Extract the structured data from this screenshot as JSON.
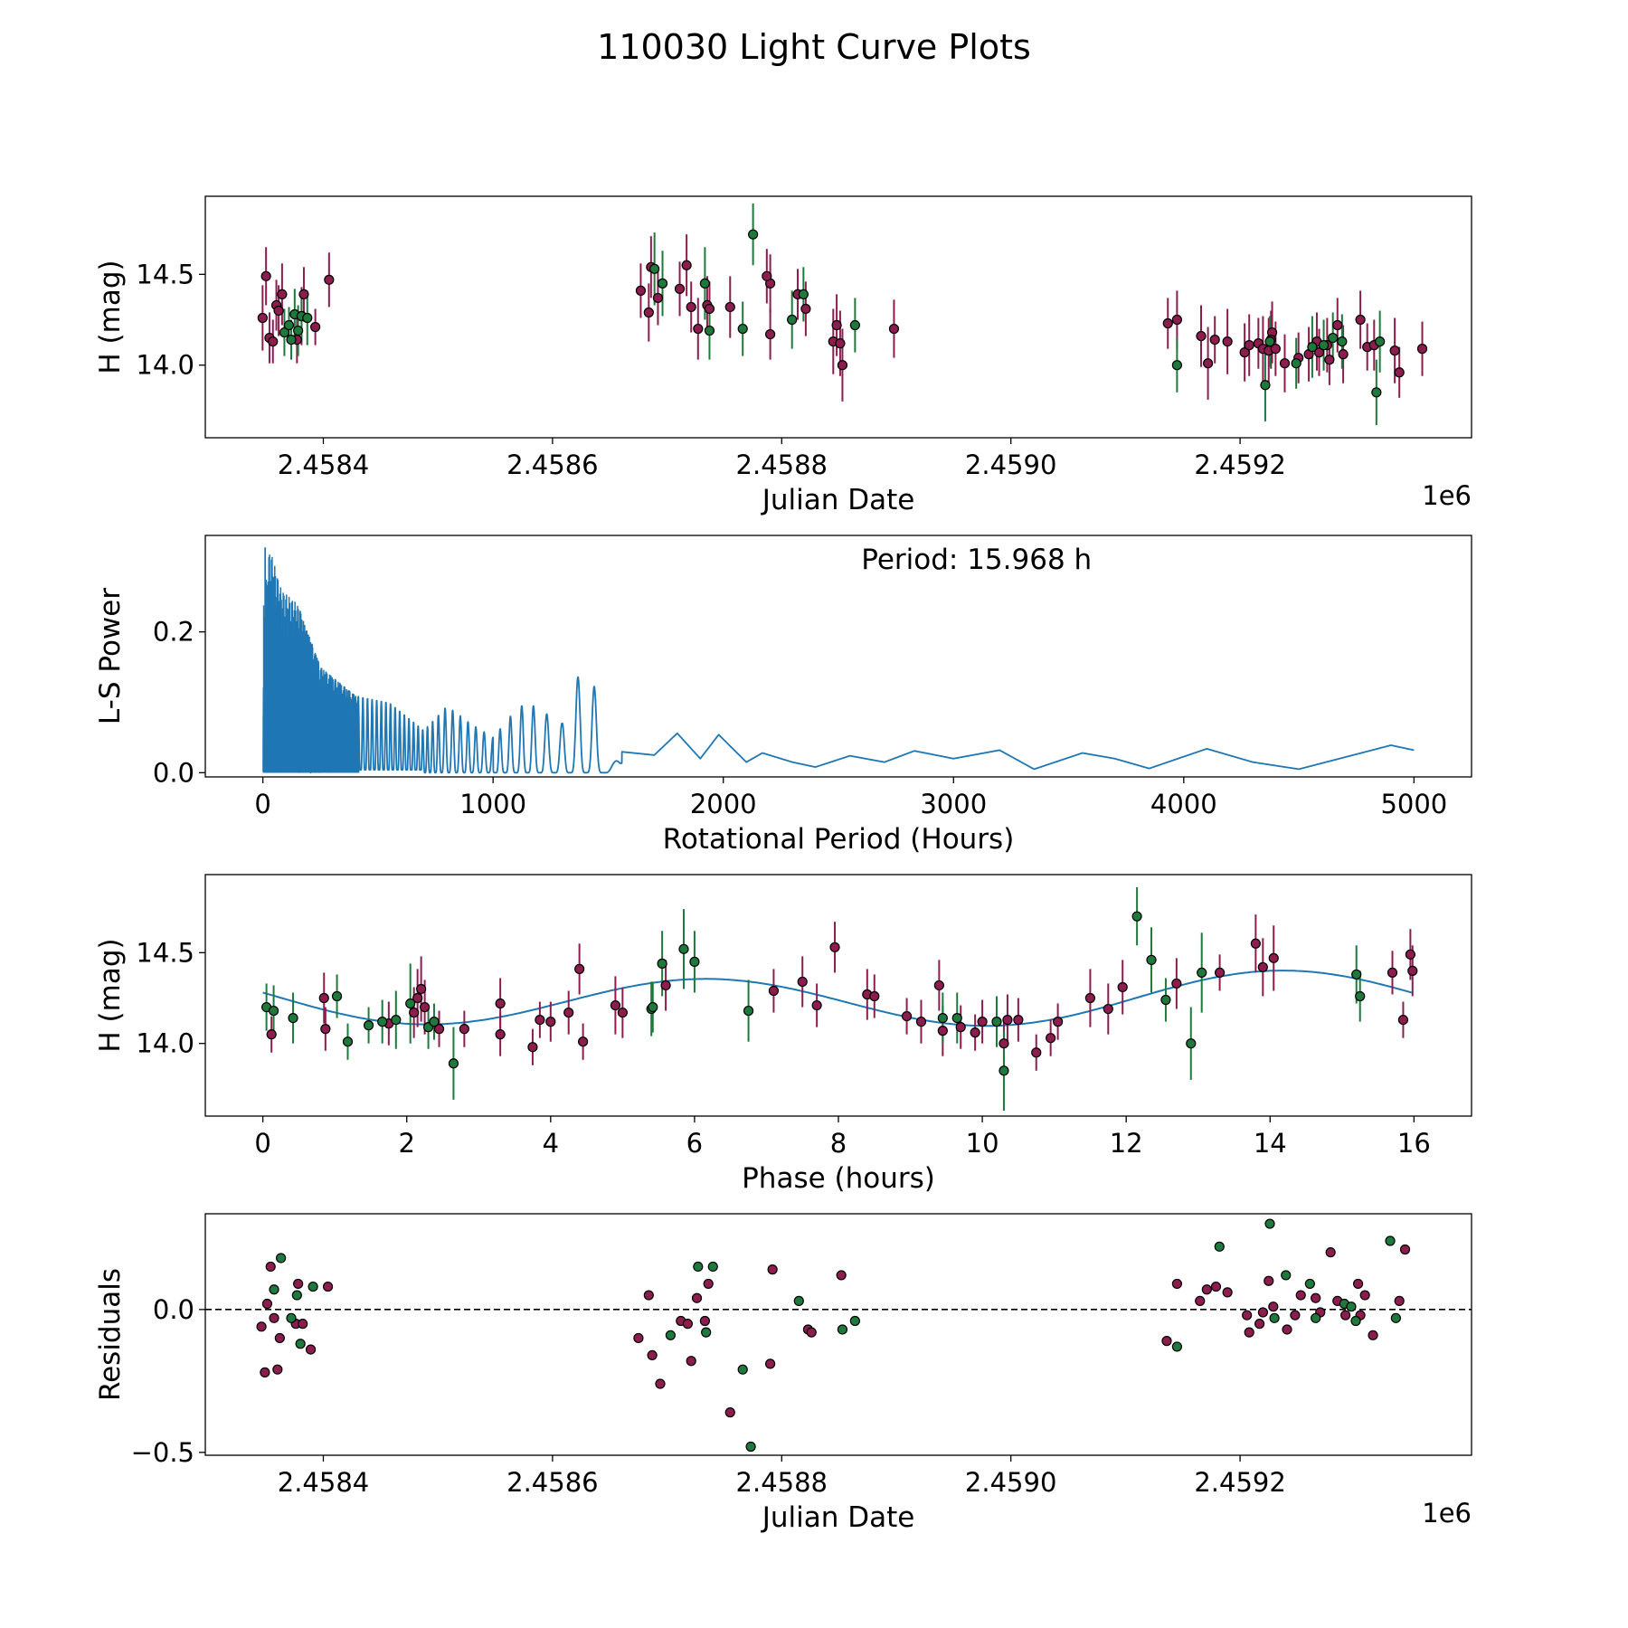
{
  "figure": {
    "title": "110030 Light Curve Plots"
  },
  "colors": {
    "maroon": "#8c1d4e",
    "green": "#1e7a3c",
    "line": "#1f77b4",
    "black": "#000000"
  },
  "chart_data": [
    {
      "id": "lightcurve",
      "type": "scatter",
      "title": "",
      "xlabel": "Julian Date",
      "ylabel": "H (mag)",
      "x_offset_label": "1e6",
      "xlim": [
        2458297,
        2459402
      ],
      "ylim": [
        13.6,
        14.93
      ],
      "x_ticks": [
        2458400,
        2458600,
        2458800,
        2459000,
        2459200
      ],
      "x_tick_labels": [
        "2.4584",
        "2.4586",
        "2.4588",
        "2.4590",
        "2.4592"
      ],
      "y_ticks": [
        14.0,
        14.5
      ],
      "y_tick_labels": [
        "14.0",
        "14.5"
      ],
      "series": [
        {
          "name": "maroon",
          "color": "maroon",
          "x": [
            2458347,
            2458350,
            2458353,
            2458356,
            2458359,
            2458361,
            2458364,
            2458377,
            2458381,
            2458383,
            2458393,
            2458405,
            2458677,
            2458684,
            2458686,
            2458692,
            2458711,
            2458717,
            2458721,
            2458727,
            2458735,
            2458737,
            2458755,
            2458790,
            2458787,
            2458790,
            2458821,
            2458814,
            2458853,
            2458845,
            2458851,
            2458848,
            2458898,
            2459137,
            2459145,
            2459166,
            2459172,
            2459178,
            2459189,
            2459204,
            2459208,
            2459216,
            2459220,
            2459225,
            2459228,
            2459231,
            2459227,
            2459239,
            2459251,
            2459260,
            2459267,
            2459269,
            2459276,
            2459278,
            2459285,
            2459290,
            2459305,
            2459311,
            2459317,
            2459335,
            2459339,
            2459359
          ],
          "y": [
            14.26,
            14.49,
            14.15,
            14.13,
            14.33,
            14.3,
            14.39,
            14.14,
            14.27,
            14.39,
            14.21,
            14.47,
            14.41,
            14.29,
            14.54,
            14.37,
            14.42,
            14.55,
            14.32,
            14.2,
            14.33,
            14.31,
            14.32,
            14.45,
            14.49,
            14.17,
            14.31,
            14.39,
            14.0,
            14.13,
            14.12,
            14.22,
            14.2,
            14.23,
            14.25,
            14.16,
            14.01,
            14.14,
            14.13,
            14.07,
            14.11,
            14.12,
            14.09,
            14.08,
            14.18,
            14.09,
            14.14,
            14.01,
            14.04,
            14.06,
            14.13,
            14.07,
            14.11,
            14.03,
            14.22,
            14.06,
            14.25,
            14.1,
            14.11,
            14.08,
            13.96,
            14.09
          ],
          "err": [
            0.18,
            0.16,
            0.14,
            0.12,
            0.14,
            0.14,
            0.17,
            0.13,
            0.16,
            0.15,
            0.1,
            0.15,
            0.15,
            0.16,
            0.17,
            0.15,
            0.15,
            0.17,
            0.14,
            0.17,
            0.16,
            0.15,
            0.17,
            0.16,
            0.15,
            0.14,
            0.15,
            0.14,
            0.2,
            0.18,
            0.18,
            0.17,
            0.16,
            0.14,
            0.16,
            0.17,
            0.2,
            0.13,
            0.18,
            0.16,
            0.17,
            0.14,
            0.18,
            0.18,
            0.17,
            0.15,
            0.16,
            0.16,
            0.14,
            0.15,
            0.16,
            0.13,
            0.15,
            0.14,
            0.15,
            0.16,
            0.16,
            0.13,
            0.14,
            0.18,
            0.14,
            0.15
          ]
        },
        {
          "name": "green",
          "color": "green",
          "x": [
            2458366,
            2458370,
            2458372,
            2458375,
            2458378,
            2458381,
            2458386,
            2458689,
            2458696,
            2458733,
            2458737,
            2458766,
            2458775,
            2458809,
            2458819,
            2458864,
            2459145,
            2459222,
            2459226,
            2459249,
            2459263,
            2459273,
            2459281,
            2459289,
            2459319,
            2459322
          ],
          "y": [
            14.18,
            14.22,
            14.14,
            14.28,
            14.19,
            14.27,
            14.26,
            14.53,
            14.45,
            14.45,
            14.19,
            14.2,
            14.72,
            14.25,
            14.39,
            14.22,
            14.0,
            13.89,
            14.13,
            14.01,
            14.1,
            14.11,
            14.15,
            14.13,
            13.85,
            14.13
          ],
          "err": [
            0.13,
            0.1,
            0.11,
            0.14,
            0.14,
            0.14,
            0.15,
            0.2,
            0.18,
            0.2,
            0.16,
            0.15,
            0.17,
            0.16,
            0.15,
            0.15,
            0.15,
            0.2,
            0.14,
            0.14,
            0.17,
            0.14,
            0.14,
            0.15,
            0.18,
            0.17
          ]
        }
      ]
    },
    {
      "id": "periodogram",
      "type": "line",
      "title": "",
      "xlabel": "Rotational Period (Hours)",
      "ylabel": "L-S Power",
      "annotation": "Period: 15.968 h",
      "xlim": [
        -250,
        5250
      ],
      "ylim": [
        -0.006,
        0.337
      ],
      "x_ticks": [
        0,
        1000,
        2000,
        3000,
        4000,
        5000
      ],
      "x_tick_labels": [
        "0",
        "1000",
        "2000",
        "3000",
        "4000",
        "5000"
      ],
      "y_ticks": [
        0.0,
        0.2
      ],
      "y_tick_labels": [
        "0.0",
        "0.2"
      ],
      "peak_max": 0.32,
      "envelope_x": [
        0,
        30,
        80,
        150,
        250,
        400,
        550,
        700,
        800,
        900,
        1000,
        1100,
        1150,
        1250,
        1300,
        1380,
        1450,
        1550,
        1700,
        1800,
        1900,
        1980,
        2100,
        2170,
        2300,
        2400,
        2550,
        2700,
        2830,
        3000,
        3200,
        3350,
        3560,
        3700,
        3850,
        4100,
        4300,
        4500,
        4900,
        5000
      ],
      "envelope_y": [
        0.23,
        0.32,
        0.26,
        0.24,
        0.15,
        0.11,
        0.1,
        0.06,
        0.095,
        0.07,
        0.05,
        0.09,
        0.1,
        0.08,
        0.07,
        0.147,
        0.118,
        0.03,
        0.025,
        0.056,
        0.02,
        0.054,
        0.015,
        0.028,
        0.015,
        0.008,
        0.024,
        0.015,
        0.031,
        0.02,
        0.032,
        0.005,
        0.028,
        0.02,
        0.006,
        0.034,
        0.015,
        0.005,
        0.039,
        0.032
      ],
      "oscillation_freq": [
        1.0,
        1.0,
        1.0,
        1.0,
        0.05,
        0.05,
        0.05,
        0.05,
        0.03,
        0.03,
        0.025,
        0.02,
        0.02,
        0.015,
        0.015,
        0.014,
        0.014,
        0.0,
        0.0,
        0.0,
        0.0,
        0.0,
        0.0,
        0.0,
        0.0,
        0.0,
        0.0,
        0.0,
        0.0,
        0.0,
        0.0,
        0.0,
        0.0,
        0.0,
        0.0,
        0.0,
        0.0,
        0.0,
        0.0,
        0.0
      ]
    },
    {
      "id": "phased",
      "type": "scatter",
      "title": "",
      "xlabel": "Phase (hours)",
      "ylabel": "H (mag)",
      "xlim": [
        -0.8,
        16.8
      ],
      "ylim": [
        13.6,
        14.93
      ],
      "x_ticks": [
        0,
        2,
        4,
        6,
        8,
        10,
        12,
        14,
        16
      ],
      "x_tick_labels": [
        "0",
        "2",
        "4",
        "6",
        "8",
        "10",
        "12",
        "14",
        "16"
      ],
      "y_ticks": [
        14.0,
        14.5
      ],
      "y_tick_labels": [
        "14.0",
        "14.5"
      ],
      "model": {
        "period": 15.968,
        "mean": 14.24,
        "a1": 0.02,
        "b1": -0.012,
        "a2": 0.02,
        "b2": -0.137
      },
      "series": [
        {
          "name": "maroon",
          "color": "maroon",
          "x": [
            0.12,
            0.85,
            0.87,
            1.75,
            2.1,
            2.15,
            2.2,
            2.25,
            2.45,
            2.8,
            3.3,
            3.3,
            3.75,
            3.85,
            4.0,
            4.25,
            4.4,
            4.45,
            4.9,
            5.0,
            5.6,
            7.1,
            7.5,
            7.7,
            7.95,
            8.4,
            8.5,
            8.95,
            9.15,
            9.4,
            9.45,
            9.7,
            9.9,
            10.0,
            10.3,
            10.35,
            10.5,
            10.75,
            10.95,
            11.05,
            11.75,
            11.5,
            11.95,
            12.7,
            13.3,
            13.8,
            13.9,
            14.05,
            15.7,
            15.85,
            15.95,
            15.98
          ],
          "y": [
            14.05,
            14.25,
            14.08,
            14.11,
            14.17,
            14.25,
            14.3,
            14.2,
            14.08,
            14.08,
            14.05,
            14.22,
            13.98,
            14.13,
            14.12,
            14.17,
            14.41,
            14.01,
            14.21,
            14.17,
            14.32,
            14.29,
            14.34,
            14.21,
            14.53,
            14.27,
            14.26,
            14.15,
            14.12,
            14.32,
            14.07,
            14.09,
            14.06,
            14.12,
            14.0,
            14.13,
            14.13,
            13.95,
            14.03,
            14.12,
            14.19,
            14.25,
            14.31,
            14.33,
            14.39,
            14.55,
            14.42,
            14.47,
            14.39,
            14.13,
            14.49,
            14.4
          ],
          "err": [
            0.1,
            0.14,
            0.12,
            0.12,
            0.14,
            0.16,
            0.18,
            0.15,
            0.1,
            0.1,
            0.12,
            0.14,
            0.1,
            0.1,
            0.11,
            0.12,
            0.14,
            0.1,
            0.16,
            0.14,
            0.14,
            0.12,
            0.14,
            0.12,
            0.14,
            0.14,
            0.12,
            0.1,
            0.12,
            0.14,
            0.14,
            0.12,
            0.1,
            0.12,
            0.12,
            0.14,
            0.12,
            0.1,
            0.1,
            0.1,
            0.14,
            0.16,
            0.15,
            0.14,
            0.1,
            0.16,
            0.16,
            0.18,
            0.12,
            0.1,
            0.14,
            0.14
          ]
        },
        {
          "name": "green",
          "color": "green",
          "x": [
            0.05,
            0.15,
            0.42,
            1.03,
            1.18,
            1.47,
            1.66,
            1.85,
            2.05,
            2.3,
            2.38,
            2.65,
            5.4,
            5.42,
            5.55,
            5.85,
            6.0,
            6.75,
            9.45,
            9.65,
            10.2,
            10.3,
            12.15,
            12.35,
            12.55,
            13.05,
            12.9,
            15.2,
            15.25
          ],
          "y": [
            14.2,
            14.18,
            14.14,
            14.26,
            14.01,
            14.1,
            14.12,
            14.13,
            14.22,
            14.09,
            14.12,
            13.89,
            14.19,
            14.2,
            14.44,
            14.52,
            14.45,
            14.18,
            14.14,
            14.14,
            14.12,
            13.85,
            14.7,
            14.46,
            14.24,
            14.39,
            14.0,
            14.38,
            14.26
          ],
          "err": [
            0.13,
            0.14,
            0.14,
            0.12,
            0.1,
            0.1,
            0.12,
            0.16,
            0.22,
            0.12,
            0.1,
            0.2,
            0.15,
            0.14,
            0.18,
            0.22,
            0.17,
            0.17,
            0.14,
            0.14,
            0.14,
            0.22,
            0.16,
            0.18,
            0.12,
            0.22,
            0.2,
            0.16,
            0.14
          ]
        }
      ]
    },
    {
      "id": "residuals",
      "type": "scatter",
      "title": "",
      "xlabel": "Julian Date",
      "ylabel": "Residuals",
      "x_offset_label": "1e6",
      "xlim": [
        2458297,
        2459402
      ],
      "ylim": [
        -0.51,
        0.335
      ],
      "x_ticks": [
        2458400,
        2458600,
        2458800,
        2459000,
        2459200
      ],
      "x_tick_labels": [
        "2.4584",
        "2.4586",
        "2.4588",
        "2.4590",
        "2.4592"
      ],
      "y_ticks": [
        -0.5,
        0.0
      ],
      "y_tick_labels": [
        "−0.5",
        "0.0"
      ],
      "reference_line": 0.0,
      "series": [
        {
          "name": "maroon",
          "color": "maroon",
          "x": [
            2458346,
            2458349,
            2458351,
            2458354,
            2458357,
            2458360,
            2458362,
            2458376,
            2458378,
            2458382,
            2458389,
            2458404,
            2458675,
            2458684,
            2458687,
            2458694,
            2458712,
            2458718,
            2458721,
            2458726,
            2458733,
            2458736,
            2458755,
            2458790,
            2458792,
            2458823,
            2458826,
            2458852,
            2459136,
            2459145,
            2459165,
            2459171,
            2459179,
            2459189,
            2459206,
            2459208,
            2459217,
            2459220,
            2459225,
            2459229,
            2459241,
            2459248,
            2459253,
            2459266,
            2459270,
            2459279,
            2459285,
            2459292,
            2459303,
            2459305,
            2459309,
            2459316,
            2459339,
            2459344
          ],
          "y": [
            -0.06,
            -0.22,
            0.02,
            0.15,
            -0.03,
            -0.21,
            -0.1,
            -0.05,
            0.09,
            -0.05,
            -0.14,
            0.08,
            -0.1,
            0.05,
            -0.16,
            -0.26,
            -0.04,
            -0.05,
            -0.18,
            0.04,
            -0.04,
            0.09,
            -0.36,
            -0.19,
            0.14,
            -0.07,
            -0.08,
            0.12,
            -0.11,
            0.09,
            0.03,
            0.07,
            0.08,
            0.06,
            -0.02,
            -0.08,
            -0.05,
            -0.01,
            0.1,
            0.01,
            -0.07,
            -0.02,
            0.05,
            0.04,
            -0.01,
            0.2,
            0.03,
            -0.02,
            0.09,
            -0.02,
            0.05,
            -0.09,
            0.03,
            0.21
          ]
        },
        {
          "name": "green",
          "color": "green",
          "x": [
            2458357,
            2458363,
            2458372,
            2458377,
            2458380,
            2458391,
            2458703,
            2458727,
            2458734,
            2458740,
            2458766,
            2458773,
            2458815,
            2458853,
            2458864,
            2459145,
            2459182,
            2459226,
            2459230,
            2459240,
            2459261,
            2459266,
            2459291,
            2459297,
            2459301,
            2459331,
            2459336
          ],
          "y": [
            0.07,
            0.18,
            -0.03,
            0.05,
            -0.12,
            0.08,
            -0.09,
            0.15,
            -0.08,
            0.15,
            -0.21,
            -0.48,
            0.03,
            -0.07,
            -0.04,
            -0.13,
            0.22,
            0.3,
            -0.03,
            0.12,
            0.09,
            -0.03,
            0.02,
            0.01,
            -0.04,
            0.24,
            -0.03
          ]
        }
      ]
    }
  ]
}
